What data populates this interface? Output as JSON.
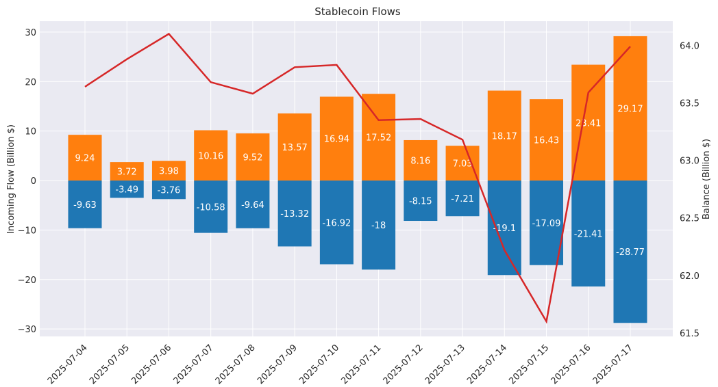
{
  "chart_data": {
    "type": "bar",
    "title": "Stablecoin Flows",
    "ylabel": "Incoming Flow (Billion $)",
    "y2label": "Balance (Billion $)",
    "ylim": [
      -31.5,
      32.2
    ],
    "y2lim": [
      61.47,
      64.21
    ],
    "yticks": [
      -30,
      -20,
      -10,
      0,
      10,
      20,
      30
    ],
    "y2ticks": [
      61.5,
      62.0,
      62.5,
      63.0,
      63.5,
      64.0
    ],
    "y2tick_labels": [
      "61.5",
      "62.0",
      "62.5",
      "63.0",
      "63.5",
      "64.0"
    ],
    "grid": true,
    "categories": [
      "2025-07-04",
      "2025-07-05",
      "2025-07-06",
      "2025-07-07",
      "2025-07-08",
      "2025-07-09",
      "2025-07-10",
      "2025-07-11",
      "2025-07-12",
      "2025-07-13",
      "2025-07-14",
      "2025-07-15",
      "2025-07-16",
      "2025-07-17"
    ],
    "series": [
      {
        "kind": "bar",
        "color": "#ff7f0e",
        "values": [
          9.24,
          3.72,
          3.98,
          10.16,
          9.52,
          13.57,
          16.94,
          17.52,
          8.16,
          7.03,
          18.17,
          16.43,
          23.41,
          29.17
        ],
        "labels": [
          "9.24",
          "3.72",
          "3.98",
          "10.16",
          "9.52",
          "13.57",
          "16.94",
          "17.52",
          "8.16",
          "7.03",
          "18.17",
          "16.43",
          "23.41",
          "29.17"
        ]
      },
      {
        "kind": "bar",
        "color": "#1f77b4",
        "values": [
          -9.63,
          -3.49,
          -3.76,
          -10.58,
          -9.64,
          -13.32,
          -16.92,
          -18,
          -8.15,
          -7.21,
          -19.1,
          -17.09,
          -21.41,
          -28.77
        ],
        "labels": [
          "-9.63",
          "-3.49",
          "-3.76",
          "-10.58",
          "-9.64",
          "-13.32",
          "-16.92",
          "-18",
          "-8.15",
          "-7.21",
          "-19.1",
          "-17.09",
          "-21.41",
          "-28.77"
        ]
      },
      {
        "kind": "line",
        "axis": "right",
        "color": "#d62728",
        "values": [
          63.64,
          63.88,
          64.1,
          63.68,
          63.58,
          63.81,
          63.83,
          63.35,
          63.36,
          63.18,
          62.22,
          61.6,
          63.59,
          63.99
        ]
      }
    ]
  }
}
